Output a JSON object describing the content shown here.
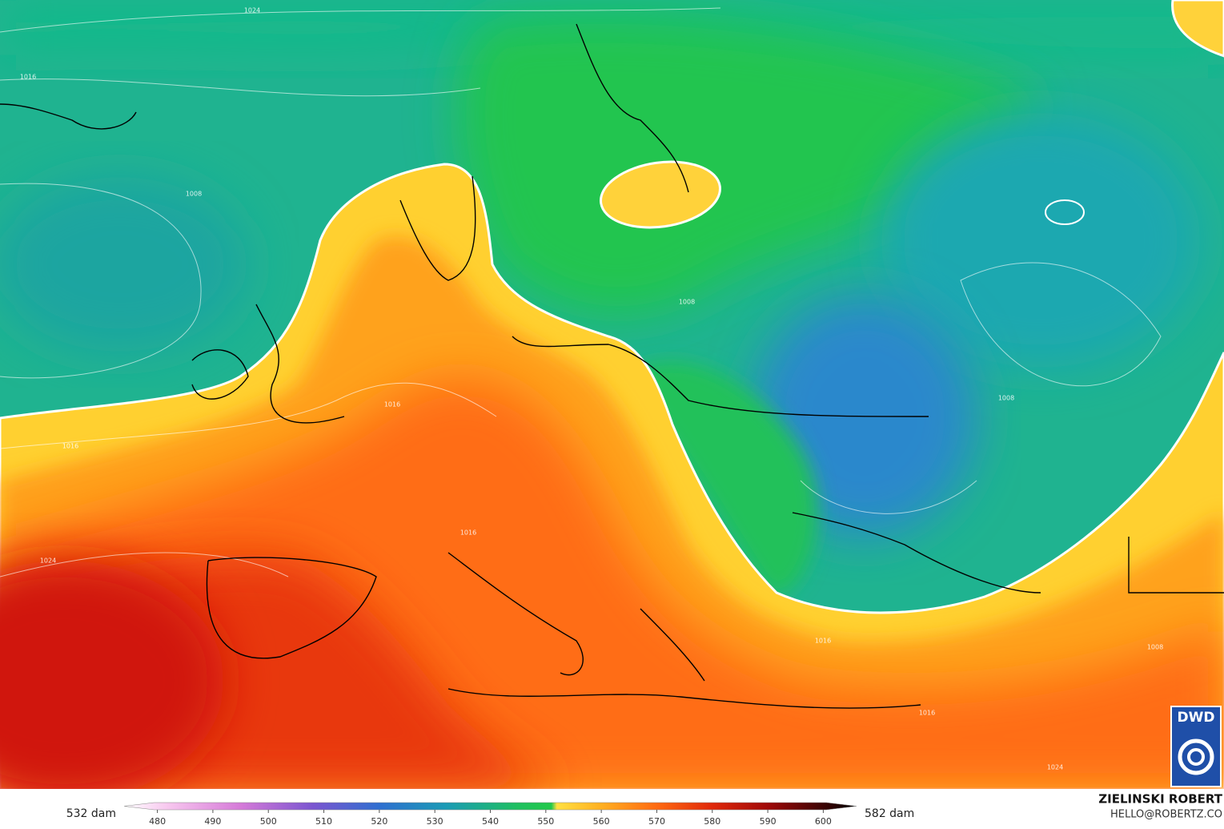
{
  "map": {
    "isobar_labels": [
      "1024",
      "1016",
      "1008",
      "1016",
      "1016",
      "1024",
      "1016",
      "1008",
      "1008",
      "1016",
      "1008",
      "1024",
      "1016"
    ]
  },
  "colorbar": {
    "min_label": "532 dam",
    "max_label": "582 dam",
    "lim": [
      474,
      606
    ],
    "ticks": [
      480,
      490,
      500,
      510,
      520,
      530,
      540,
      550,
      560,
      570,
      580,
      590,
      600
    ],
    "colors": [
      {
        "value": 474,
        "color": "#ffffff"
      },
      {
        "value": 482,
        "color": "#f7c6ee"
      },
      {
        "value": 495,
        "color": "#d57ad8"
      },
      {
        "value": 508,
        "color": "#7b55d0"
      },
      {
        "value": 520,
        "color": "#2f6fd0"
      },
      {
        "value": 532,
        "color": "#1a9bb5"
      },
      {
        "value": 545,
        "color": "#1fc060"
      },
      {
        "value": 551,
        "color": "#22c94a"
      },
      {
        "value": 552,
        "color": "#ffe040"
      },
      {
        "value": 560,
        "color": "#ffb020"
      },
      {
        "value": 570,
        "color": "#ff6a10"
      },
      {
        "value": 580,
        "color": "#e0280a"
      },
      {
        "value": 590,
        "color": "#a00808"
      },
      {
        "value": 606,
        "color": "#000000"
      }
    ]
  },
  "credit": {
    "name": "ZIELINSKI ROBERT",
    "email": "HELLO@ROBERTZ.CO"
  },
  "logo": {
    "text": "DWD"
  }
}
